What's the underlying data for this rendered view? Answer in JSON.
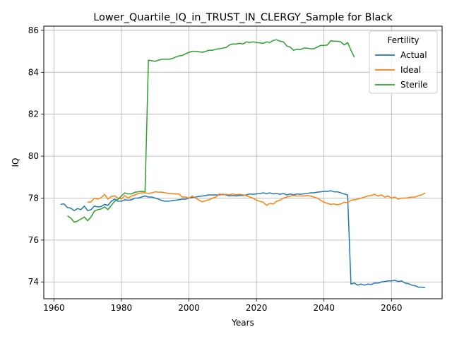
{
  "chart_data": {
    "type": "line",
    "title": "Lower_Quartile_IQ_in_TRUST_IN_CLERGY_Sample for Black",
    "xlabel": "Years",
    "ylabel": "IQ",
    "xlim": [
      1957,
      2075
    ],
    "ylim": [
      73.2,
      86.2
    ],
    "xticks": [
      1960,
      1980,
      2000,
      2020,
      2040,
      2060
    ],
    "yticks": [
      74,
      76,
      78,
      80,
      82,
      84,
      86
    ],
    "grid": true,
    "legend": {
      "title": "Fertility",
      "position": "top-right"
    },
    "series": [
      {
        "name": "Actual",
        "color": "#1f77b4",
        "x": [
          1962,
          1963,
          1964,
          1965,
          1966,
          1967,
          1968,
          1969,
          1970,
          1971,
          1972,
          1973,
          1974,
          1975,
          1976,
          1977,
          1978,
          1979,
          1980,
          1981,
          1982,
          1983,
          1984,
          1985,
          1986,
          1987,
          1988,
          1989,
          1990,
          1991,
          1992,
          1993,
          1994,
          1995,
          1996,
          1997,
          1998,
          1999,
          2000,
          2001,
          2002,
          2003,
          2004,
          2005,
          2006,
          2007,
          2008,
          2009,
          2010,
          2011,
          2012,
          2013,
          2014,
          2015,
          2016,
          2017,
          2018,
          2019,
          2020,
          2021,
          2022,
          2023,
          2024,
          2025,
          2026,
          2027,
          2028,
          2029,
          2030,
          2031,
          2032,
          2033,
          2034,
          2035,
          2036,
          2037,
          2038,
          2039,
          2040,
          2041,
          2042,
          2043,
          2044,
          2045,
          2046,
          2047,
          2048,
          2049,
          2050,
          2051,
          2052,
          2053,
          2054,
          2055,
          2056,
          2057,
          2058,
          2059,
          2060,
          2061,
          2062,
          2063,
          2064,
          2065,
          2066,
          2067,
          2068,
          2069,
          2070
        ],
        "values": [
          77.7,
          77.72,
          77.55,
          77.52,
          77.4,
          77.5,
          77.45,
          77.62,
          77.4,
          77.45,
          77.62,
          77.58,
          77.6,
          77.7,
          77.65,
          77.85,
          77.95,
          77.85,
          77.85,
          77.92,
          77.9,
          77.92,
          78.0,
          78.0,
          78.05,
          78.1,
          78.05,
          78.05,
          78.0,
          77.95,
          77.88,
          77.85,
          77.85,
          77.88,
          77.9,
          77.92,
          77.95,
          77.95,
          78.0,
          78.03,
          78.05,
          78.08,
          78.1,
          78.12,
          78.15,
          78.15,
          78.15,
          78.15,
          78.18,
          78.15,
          78.1,
          78.12,
          78.1,
          78.12,
          78.12,
          78.15,
          78.2,
          78.18,
          78.2,
          78.22,
          78.25,
          78.22,
          78.25,
          78.2,
          78.22,
          78.18,
          78.22,
          78.15,
          78.2,
          78.15,
          78.2,
          78.18,
          78.2,
          78.22,
          78.25,
          78.25,
          78.28,
          78.3,
          78.32,
          78.32,
          78.35,
          78.3,
          78.3,
          78.25,
          78.2,
          78.15,
          73.9,
          73.95,
          73.85,
          73.9,
          73.85,
          73.9,
          73.88,
          73.95,
          73.95,
          74.0,
          74.02,
          74.05,
          74.05,
          74.08,
          74.02,
          74.05,
          73.95,
          73.92,
          73.85,
          73.82,
          73.75,
          73.75,
          73.72
        ]
      },
      {
        "name": "Ideal",
        "color": "#ff7f0e",
        "x": [
          1970,
          1971,
          1972,
          1973,
          1974,
          1975,
          1976,
          1977,
          1978,
          1979,
          1980,
          1981,
          1982,
          1983,
          1984,
          1985,
          1986,
          1987,
          1988,
          1989,
          1990,
          1991,
          1992,
          1993,
          1994,
          1995,
          1996,
          1997,
          1998,
          1999,
          2000,
          2001,
          2002,
          2003,
          2004,
          2005,
          2006,
          2007,
          2008,
          2009,
          2010,
          2011,
          2012,
          2013,
          2014,
          2015,
          2016,
          2017,
          2018,
          2019,
          2020,
          2021,
          2022,
          2023,
          2024,
          2025,
          2026,
          2027,
          2028,
          2029,
          2030,
          2031,
          2032,
          2033,
          2034,
          2035,
          2036,
          2037,
          2038,
          2039,
          2040,
          2041,
          2042,
          2043,
          2044,
          2045,
          2046,
          2047,
          2048,
          2049,
          2050,
          2051,
          2052,
          2053,
          2054,
          2055,
          2056,
          2057,
          2058,
          2059,
          2060,
          2061,
          2062,
          2063,
          2064,
          2065,
          2066,
          2067,
          2068,
          2069,
          2070
        ],
        "values": [
          77.8,
          77.82,
          78.0,
          77.95,
          78.02,
          78.18,
          77.95,
          78.08,
          78.1,
          78.0,
          77.95,
          78.12,
          78.0,
          78.1,
          78.15,
          78.22,
          78.25,
          78.25,
          78.22,
          78.25,
          78.3,
          78.28,
          78.28,
          78.25,
          78.22,
          78.22,
          78.2,
          78.2,
          78.05,
          78.05,
          78.0,
          78.1,
          78.0,
          77.9,
          77.82,
          77.88,
          77.92,
          78.0,
          78.05,
          78.2,
          78.15,
          78.18,
          78.15,
          78.2,
          78.15,
          78.18,
          78.15,
          78.12,
          78.05,
          78.0,
          77.9,
          77.85,
          77.8,
          77.65,
          77.75,
          77.72,
          77.85,
          77.9,
          78.0,
          78.05,
          78.1,
          78.12,
          78.1,
          78.1,
          78.1,
          78.12,
          78.1,
          78.05,
          78.0,
          77.9,
          77.8,
          77.75,
          77.7,
          77.72,
          77.68,
          77.72,
          77.8,
          77.78,
          77.9,
          77.92,
          77.95,
          78.0,
          78.05,
          78.1,
          78.12,
          78.18,
          78.1,
          78.15,
          78.05,
          78.1,
          78.0,
          78.05,
          77.95,
          78.0,
          78.0,
          78.02,
          78.05,
          78.05,
          78.12,
          78.15,
          78.25
        ]
      },
      {
        "name": "Sterile",
        "color": "#2ca02c",
        "x": [
          1964,
          1965,
          1966,
          1967,
          1968,
          1969,
          1970,
          1971,
          1972,
          1973,
          1974,
          1975,
          1976,
          1977,
          1978,
          1979,
          1980,
          1981,
          1982,
          1983,
          1984,
          1985,
          1986,
          1987,
          1988,
          1989,
          1990,
          1991,
          1992,
          1993,
          1994,
          1995,
          1996,
          1997,
          1998,
          1999,
          2000,
          2001,
          2002,
          2003,
          2004,
          2005,
          2006,
          2007,
          2008,
          2009,
          2010,
          2011,
          2012,
          2013,
          2014,
          2015,
          2016,
          2017,
          2018,
          2019,
          2020,
          2021,
          2022,
          2023,
          2024,
          2025,
          2026,
          2027,
          2028,
          2029,
          2030,
          2031,
          2032,
          2033,
          2034,
          2035,
          2036,
          2037,
          2038,
          2039,
          2040,
          2041,
          2042,
          2043,
          2044,
          2045,
          2046,
          2047,
          2048,
          2049
        ],
        "values": [
          77.15,
          77.05,
          76.85,
          76.9,
          77.0,
          77.1,
          76.92,
          77.1,
          77.38,
          77.45,
          77.48,
          77.58,
          77.45,
          77.65,
          77.85,
          77.95,
          78.1,
          78.25,
          78.2,
          78.2,
          78.28,
          78.3,
          78.32,
          78.3,
          84.58,
          84.55,
          84.52,
          84.58,
          84.62,
          84.62,
          84.62,
          84.65,
          84.72,
          84.78,
          84.8,
          84.88,
          84.95,
          85.0,
          85.0,
          84.98,
          84.95,
          85.0,
          85.05,
          85.05,
          85.1,
          85.12,
          85.15,
          85.18,
          85.3,
          85.35,
          85.35,
          85.38,
          85.35,
          85.45,
          85.42,
          85.45,
          85.42,
          85.4,
          85.38,
          85.45,
          85.42,
          85.52,
          85.55,
          85.48,
          85.45,
          85.25,
          85.2,
          85.05,
          85.1,
          85.08,
          85.15,
          85.15,
          85.12,
          85.12,
          85.2,
          85.28,
          85.28,
          85.3,
          85.5,
          85.48,
          85.48,
          85.45,
          85.3,
          85.42,
          85.05,
          84.72
        ]
      }
    ]
  }
}
